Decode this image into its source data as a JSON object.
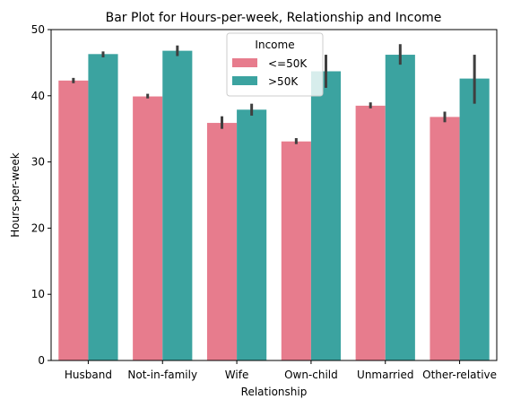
{
  "chart_data": {
    "type": "bar",
    "title": "Bar Plot for Hours-per-week, Relationship and Income",
    "xlabel": "Relationship",
    "ylabel": "Hours-per-week",
    "ylim": [
      0,
      50
    ],
    "yticks": [
      0,
      10,
      20,
      30,
      40,
      50
    ],
    "grid": false,
    "legend": {
      "title": "Income",
      "placement": "top-center"
    },
    "categories": [
      "Husband",
      "Not-in-family",
      "Wife",
      "Own-child",
      "Unmarried",
      "Other-relative"
    ],
    "series": [
      {
        "name": "<=50K",
        "color": "#e77c8d",
        "values": [
          42.3,
          39.9,
          35.9,
          33.1,
          38.5,
          36.8
        ],
        "error_low": [
          41.9,
          39.6,
          35.0,
          32.7,
          38.1,
          36.0
        ],
        "error_high": [
          42.7,
          40.3,
          36.9,
          33.6,
          39.0,
          37.6
        ]
      },
      {
        "name": ">50K",
        "color": "#3ba3a0",
        "values": [
          46.3,
          46.8,
          37.9,
          43.7,
          46.2,
          42.6
        ],
        "error_low": [
          45.8,
          46.0,
          37.0,
          41.2,
          44.7,
          38.8
        ],
        "error_high": [
          46.7,
          47.6,
          38.8,
          46.2,
          47.8,
          46.2
        ]
      }
    ],
    "error_bar_color": "#3f3f3f"
  }
}
